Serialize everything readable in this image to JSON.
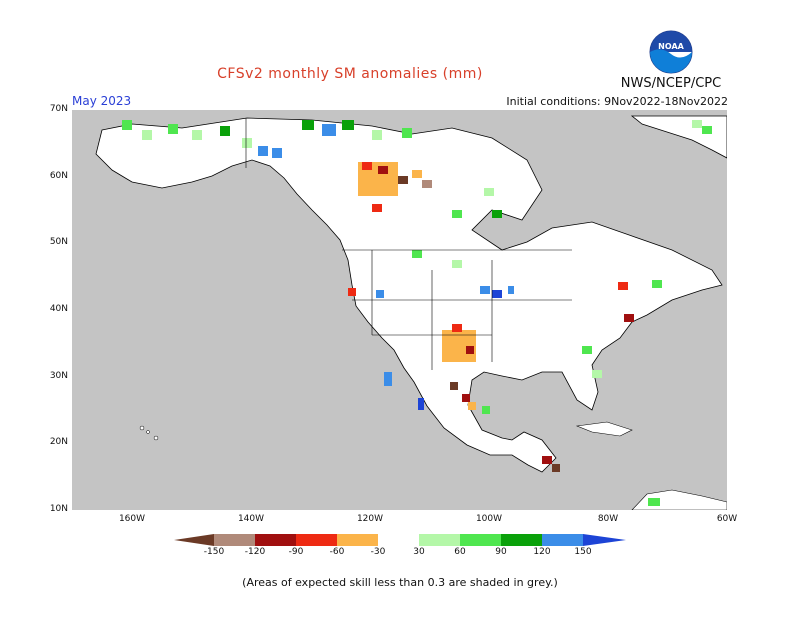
{
  "header": {
    "title": "CFSv2 monthly SM anomalies (mm)",
    "agency": "NWS/NCEP/CPC",
    "month": "May 2023",
    "initial_conditions": "Initial conditions: 9Nov2022-18Nov2022",
    "logo_text": "NOAA"
  },
  "map": {
    "lat_labels": [
      "70N",
      "60N",
      "50N",
      "40N",
      "30N",
      "20N",
      "10N"
    ],
    "lon_labels": [
      "160W",
      "140W",
      "120W",
      "100W",
      "80W",
      "60W"
    ],
    "land_color": "#ffffff",
    "ocean_color": "#c4c4c4",
    "low_skill_color": "#c4c4c4"
  },
  "legend": {
    "tick_labels": [
      "-150",
      "-120",
      "-90",
      "-60",
      "-30",
      "30",
      "60",
      "90",
      "120",
      "150"
    ],
    "colors": [
      "#6b3a26",
      "#b08a7a",
      "#a00f0f",
      "#ee2a13",
      "#fbb44a",
      "#ffffff",
      "#b4f7a8",
      "#4fe64f",
      "#0aa10a",
      "#3b8de8",
      "#1d44d6"
    ]
  },
  "footnote": "(Areas of expected skill less than 0.3 are shaded in grey.)"
}
